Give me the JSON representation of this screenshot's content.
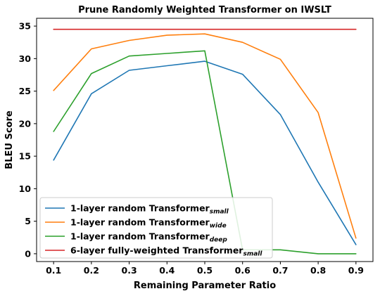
{
  "chart_data": {
    "type": "line",
    "title": "Prune Randomly Weighted Transformer on IWSLT",
    "xlabel": "Remaining Parameter Ratio",
    "ylabel": "BLEU Score",
    "x": [
      0.1,
      0.2,
      0.3,
      0.4,
      0.5,
      0.6,
      0.7,
      0.8,
      0.9
    ],
    "x_ticks": [
      "0.1",
      "0.2",
      "0.3",
      "0.4",
      "0.5",
      "0.6",
      "0.7",
      "0.8",
      "0.9"
    ],
    "y_ticks": [
      "0",
      "5",
      "10",
      "15",
      "20",
      "25",
      "30",
      "35"
    ],
    "xlim": [
      0.055,
      0.945
    ],
    "ylim": [
      -1.2,
      36.2
    ],
    "grid": false,
    "legend_position": "lower-left",
    "series": [
      {
        "name": "1-layer random Transformer",
        "subscript": "small",
        "color": "#1f77b4",
        "values": [
          14.4,
          24.6,
          28.2,
          28.9,
          29.6,
          27.6,
          21.4,
          11.0,
          1.4
        ]
      },
      {
        "name": "1-layer random Transformer",
        "subscript": "wide",
        "color": "#ff7f0e",
        "values": [
          25.1,
          31.5,
          32.8,
          33.6,
          33.8,
          32.5,
          29.9,
          21.7,
          2.4
        ]
      },
      {
        "name": "1-layer random Transformer",
        "subscript": "deep",
        "color": "#2ca02c",
        "values": [
          18.8,
          27.7,
          30.4,
          30.8,
          31.2,
          0.6,
          0.6,
          0.0,
          0.0
        ]
      },
      {
        "name": "6-layer fully-weighted Transformer",
        "subscript": "small",
        "color": "#d62728",
        "values": [
          34.5,
          34.5,
          34.5,
          34.5,
          34.5,
          34.5,
          34.5,
          34.5,
          34.5
        ]
      }
    ]
  }
}
